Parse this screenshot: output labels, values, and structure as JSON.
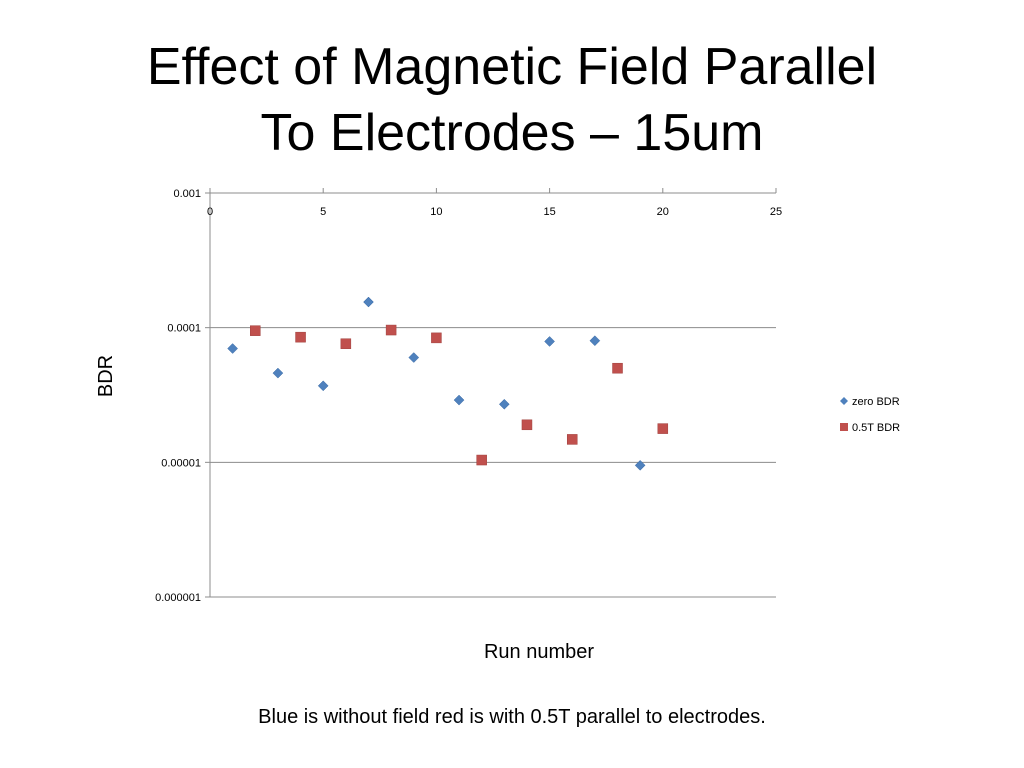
{
  "slide": {
    "title_line1": "Effect of Magnetic Field Parallel",
    "title_line2": "To Electrodes – 15um",
    "caption": "Blue is without field red is with 0.5T parallel to electrodes."
  },
  "chart_data": {
    "type": "scatter",
    "xlabel": "Run number",
    "ylabel": "BDR",
    "xlim": [
      0,
      25
    ],
    "x_ticks": [
      0,
      5,
      10,
      15,
      20,
      25
    ],
    "ylim": [
      1e-06,
      0.001
    ],
    "y_scale": "log",
    "y_ticks": [
      0.001,
      0.0001,
      1e-05,
      1e-06
    ],
    "y_tick_labels": [
      "0.001",
      "0.0001",
      "0.00001",
      "0.000001"
    ],
    "x_axis_position": "top",
    "grid": "horizontal major",
    "legend": "right",
    "series": [
      {
        "name": "zero BDR",
        "marker": "diamond",
        "color": "#4F81BD",
        "points": [
          [
            1,
            7e-05
          ],
          [
            3,
            4.6e-05
          ],
          [
            5,
            3.7e-05
          ],
          [
            7,
            0.000155
          ],
          [
            9,
            6e-05
          ],
          [
            11,
            2.9e-05
          ],
          [
            13,
            2.7e-05
          ],
          [
            15,
            7.9e-05
          ],
          [
            17,
            8e-05
          ],
          [
            19,
            9.5e-06
          ]
        ]
      },
      {
        "name": "0.5T BDR",
        "marker": "square",
        "color": "#C0504D",
        "points": [
          [
            2,
            9.5e-05
          ],
          [
            4,
            8.5e-05
          ],
          [
            6,
            7.6e-05
          ],
          [
            8,
            9.6e-05
          ],
          [
            10,
            8.4e-05
          ],
          [
            12,
            1.04e-05
          ],
          [
            14,
            1.9e-05
          ],
          [
            16,
            1.48e-05
          ],
          [
            18,
            5e-05
          ],
          [
            20,
            1.78e-05
          ]
        ]
      }
    ]
  }
}
